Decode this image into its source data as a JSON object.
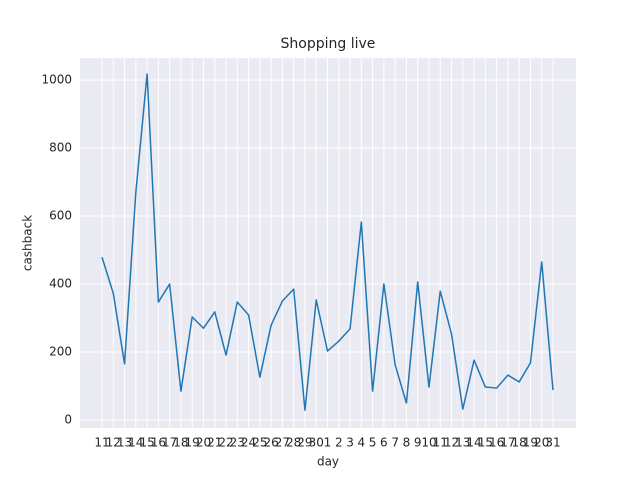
{
  "chart_data": {
    "type": "line",
    "title": "Shopping live",
    "xlabel": "day",
    "ylabel": "cashback",
    "categories": [
      "11",
      "12",
      "13",
      "14",
      "15",
      "16",
      "17",
      "18",
      "19",
      "20",
      "21",
      "22",
      "23",
      "24",
      "25",
      "26",
      "27",
      "28",
      "29",
      "30",
      "1",
      "2",
      "3",
      "4",
      "5",
      "6",
      "7",
      "8",
      "9",
      "10",
      "11",
      "12",
      "13",
      "14",
      "15",
      "16",
      "17",
      "18",
      "19",
      "20",
      "31"
    ],
    "series": [
      {
        "name": "cashback",
        "color": "#1f77b4",
        "values": [
          479,
          373,
          165,
          670,
          1018,
          347,
          400,
          85,
          303,
          270,
          318,
          191,
          347,
          309,
          126,
          279,
          350,
          385,
          29,
          353,
          203,
          232,
          268,
          582,
          85,
          400,
          162,
          50,
          406,
          97,
          379,
          253,
          32,
          176,
          97,
          94,
          132,
          112,
          168,
          465,
          88
        ]
      }
    ],
    "ylim": [
      -23.5,
      1065
    ],
    "yticks": [
      0,
      200,
      400,
      600,
      800,
      1000
    ],
    "grid": true
  }
}
